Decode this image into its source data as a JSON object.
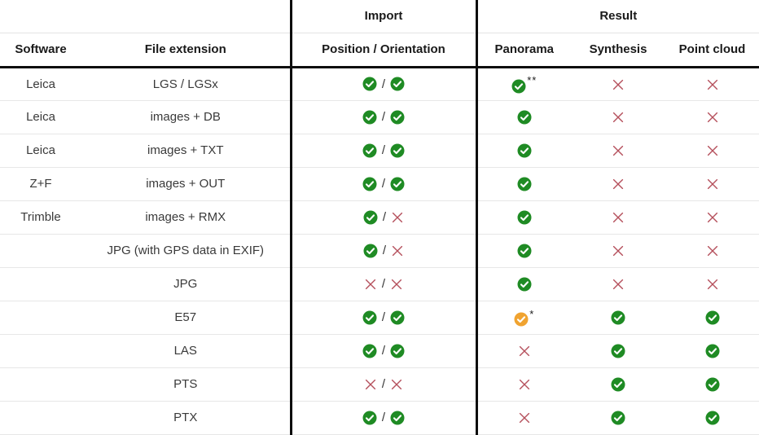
{
  "table": {
    "groups": {
      "import": "Import",
      "result": "Result"
    },
    "columns": [
      "Software",
      "File extension",
      "Position / Orientation",
      "Panorama",
      "Synthesis",
      "Point cloud"
    ],
    "rows": [
      {
        "software": "Leica",
        "extension": "LGS / LGSx",
        "import_position": "check",
        "import_orientation": "check",
        "panorama": "check",
        "panorama_note": "**",
        "synthesis": "cross",
        "point_cloud": "cross"
      },
      {
        "software": "Leica",
        "extension": "images + DB",
        "import_position": "check",
        "import_orientation": "check",
        "panorama": "check",
        "panorama_note": "",
        "synthesis": "cross",
        "point_cloud": "cross"
      },
      {
        "software": "Leica",
        "extension": "images + TXT",
        "import_position": "check",
        "import_orientation": "check",
        "panorama": "check",
        "panorama_note": "",
        "synthesis": "cross",
        "point_cloud": "cross"
      },
      {
        "software": "Z+F",
        "extension": "images + OUT",
        "import_position": "check",
        "import_orientation": "check",
        "panorama": "check",
        "panorama_note": "",
        "synthesis": "cross",
        "point_cloud": "cross"
      },
      {
        "software": "Trimble",
        "extension": "images + RMX",
        "import_position": "check",
        "import_orientation": "cross",
        "panorama": "check",
        "panorama_note": "",
        "synthesis": "cross",
        "point_cloud": "cross"
      },
      {
        "software": "",
        "extension": "JPG (with GPS data in EXIF)",
        "import_position": "check",
        "import_orientation": "cross",
        "panorama": "check",
        "panorama_note": "",
        "synthesis": "cross",
        "point_cloud": "cross"
      },
      {
        "software": "",
        "extension": "JPG",
        "import_position": "cross",
        "import_orientation": "cross",
        "panorama": "check",
        "panorama_note": "",
        "synthesis": "cross",
        "point_cloud": "cross"
      },
      {
        "software": "",
        "extension": "E57",
        "import_position": "check",
        "import_orientation": "check",
        "panorama": "warn",
        "panorama_note": "*",
        "synthesis": "check",
        "point_cloud": "check"
      },
      {
        "software": "",
        "extension": "LAS",
        "import_position": "check",
        "import_orientation": "check",
        "panorama": "cross",
        "panorama_note": "",
        "synthesis": "check",
        "point_cloud": "check"
      },
      {
        "software": "",
        "extension": "PTS",
        "import_position": "cross",
        "import_orientation": "cross",
        "panorama": "cross",
        "panorama_note": "",
        "synthesis": "check",
        "point_cloud": "check"
      },
      {
        "software": "",
        "extension": "PTX",
        "import_position": "check",
        "import_orientation": "check",
        "panorama": "cross",
        "panorama_note": "",
        "synthesis": "check",
        "point_cloud": "check"
      }
    ],
    "separator": "/"
  },
  "icons": {
    "check": "check-circle-icon",
    "warn": "warn-check-circle-icon",
    "cross": "cross-icon"
  },
  "colors": {
    "check_green": "#1f8b24",
    "warn_orange": "#f0a330",
    "cross_red": "#b5505c",
    "divider_black": "#0d0d0d",
    "row_line_gray": "#e7e7e7"
  }
}
